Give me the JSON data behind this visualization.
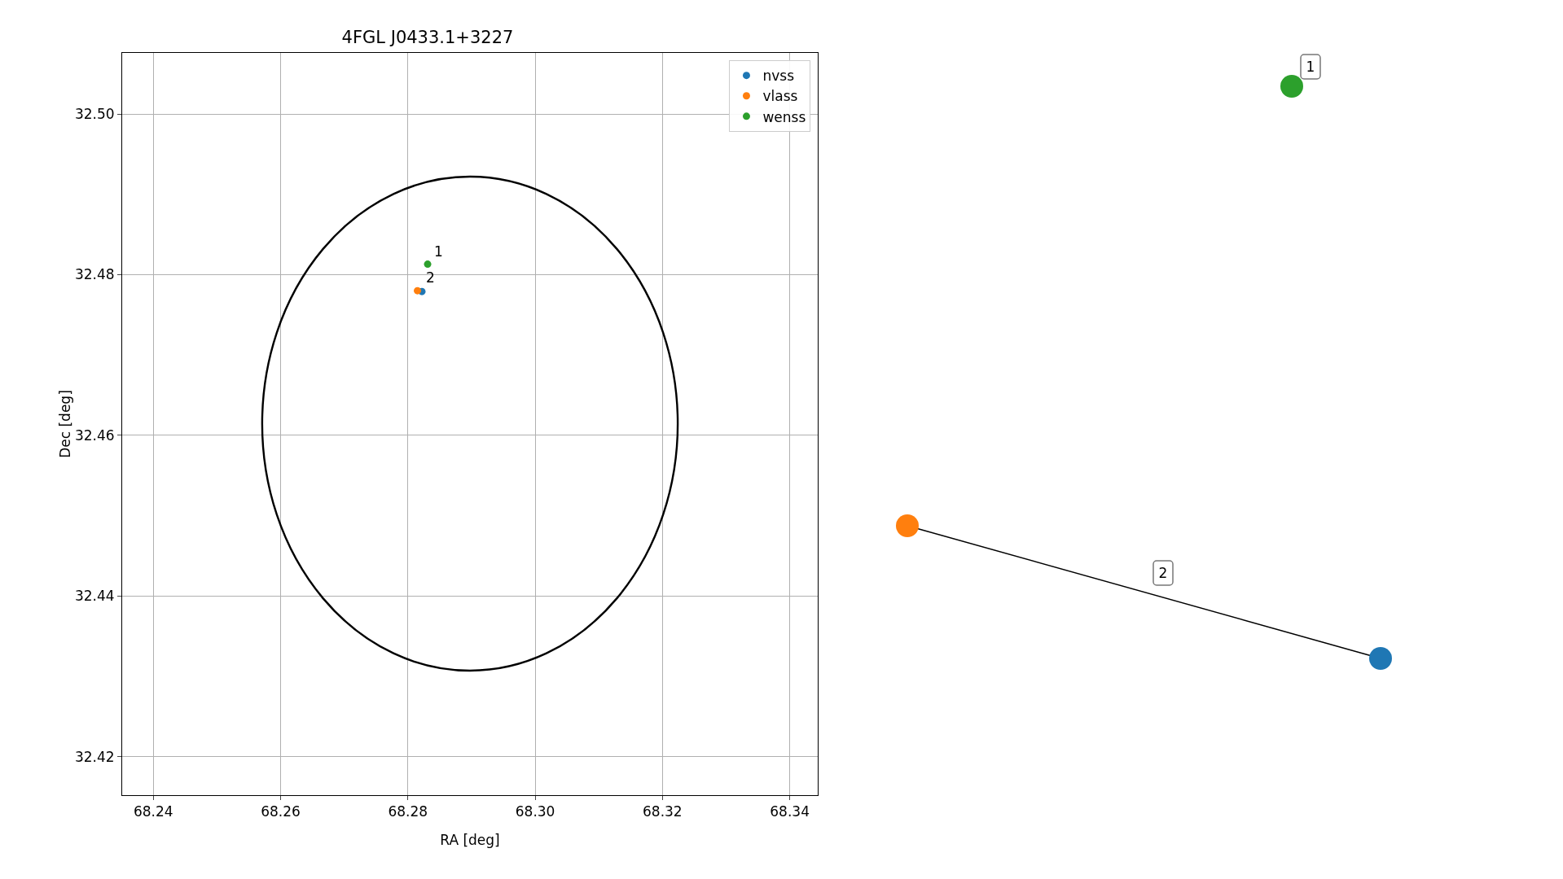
{
  "chart_data": [
    {
      "type": "scatter",
      "title": "4FGL J0433.1+3227",
      "xlabel": "RA [deg]",
      "ylabel": "Dec [deg]",
      "xlim": [
        68.2351,
        68.3444
      ],
      "ylim": [
        32.4152,
        32.5076
      ],
      "xticks": [
        68.24,
        68.26,
        68.28,
        {
          "value": 68.3,
          "label": "68.30"
        },
        68.32,
        68.34
      ],
      "yticks": [
        32.42,
        32.44,
        32.46,
        32.48,
        {
          "value": 32.5,
          "label": "32.50"
        }
      ],
      "grid": true,
      "legend": "top right",
      "marker": "circle",
      "series": [
        {
          "name": "nvss",
          "color": "#1f77b4",
          "x": [
            68.2822
          ],
          "values": [
            32.4779
          ]
        },
        {
          "name": "vlass",
          "color": "#ff7f0e",
          "x": [
            68.2815
          ],
          "values": [
            32.478
          ]
        },
        {
          "name": "wenss",
          "color": "#2ca02c",
          "x": [
            68.2831
          ],
          "values": [
            32.4813
          ]
        }
      ],
      "annotations": [
        {
          "text": "1",
          "x": 68.2831,
          "y": 32.4813
        },
        {
          "text": "2",
          "x": 68.2818,
          "y": 32.478
        }
      ]
    },
    {
      "type": "other",
      "annotations": [
        "1",
        "2"
      ]
    }
  ]
}
